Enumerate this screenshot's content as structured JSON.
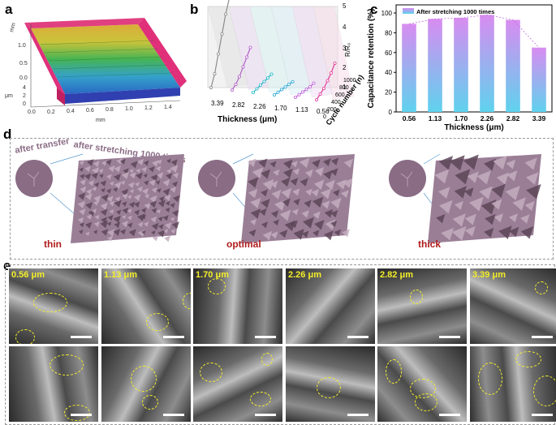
{
  "panels": {
    "a": {
      "letter": "a",
      "y_axis_unit": "mm",
      "x_axis_unit": "mm",
      "z_axis_unit": "μm",
      "x_ticks": [
        "0.0",
        "0.2",
        "0.4",
        "0.6",
        "0.8",
        "1.0",
        "1.2",
        "1.4"
      ],
      "y_ticks": [
        "0.0",
        "0.5",
        "1.0"
      ],
      "z_ticks": [
        "4",
        "2",
        "0"
      ]
    },
    "b": {
      "letter": "b",
      "xlabel": "Thickness (μm)",
      "thickness_ticks": [
        "3.39",
        "2.82",
        "2.26",
        "1.70",
        "1.13",
        "0.56"
      ],
      "cycle_label": "Cycle number (n)",
      "cycle_ticks": [
        "0",
        "200",
        "400",
        "600",
        "800",
        "1000"
      ],
      "r_label": "R/R₀",
      "r_ticks": [
        "1",
        "2",
        "3",
        "4",
        "5"
      ]
    },
    "c": {
      "letter": "c",
      "ylabel": "Capacitance retention (%)",
      "xlabel": "Thickness (μm)",
      "y_ticks": [
        "0",
        "20",
        "40",
        "60",
        "80",
        "100"
      ],
      "legend": "After stretching 1000 times"
    },
    "d": {
      "letter": "d",
      "inset_label": "after transfer",
      "caption": "after stretching 1000 times",
      "states": [
        "thin",
        "optimal",
        "thick"
      ]
    },
    "e": {
      "letter": "e",
      "labels": [
        "0.56 μm",
        "1.13 μm",
        "1.70 μm",
        "2.26 μm",
        "2.82 μm",
        "3.39 μm"
      ]
    }
  },
  "chart_data": [
    {
      "type": "bar",
      "title": "",
      "categories": [
        "0.56",
        "1.13",
        "1.70",
        "2.26",
        "2.82",
        "3.39"
      ],
      "values": [
        89,
        94,
        95,
        98,
        93,
        65
      ],
      "xlabel": "Thickness (μm)",
      "ylabel": "Capacitance retention (%)",
      "ylim": [
        0,
        100
      ],
      "legend": "After stretching 1000 times",
      "legend_position": "top",
      "colors": {
        "bar_top": "#d08ef0",
        "bar_bottom": "#6fd0ee",
        "trend": "#c070d8"
      }
    },
    {
      "type": "line",
      "title": "",
      "xlabel": "Thickness (μm)",
      "ylabel": "R/R₀",
      "zlabel": "Cycle number (n)",
      "x": [
        0,
        200,
        400,
        600,
        800,
        1000
      ],
      "ylim": [
        1,
        5
      ],
      "series": [
        {
          "name": "3.39",
          "values": [
            1.0,
            1.6,
            2.5,
            3.4,
            4.3,
            5.0
          ],
          "color": "#8c8c8c"
        },
        {
          "name": "2.82",
          "values": [
            1.0,
            1.2,
            1.5,
            1.9,
            2.3,
            2.7
          ],
          "color": "#b060c8"
        },
        {
          "name": "2.26",
          "values": [
            1.0,
            1.1,
            1.2,
            1.3,
            1.4,
            1.5
          ],
          "color": "#20b8c8"
        },
        {
          "name": "1.70",
          "values": [
            1.0,
            1.05,
            1.1,
            1.15,
            1.2,
            1.25
          ],
          "color": "#2aa8d8"
        },
        {
          "name": "1.13",
          "values": [
            1.0,
            1.05,
            1.1,
            1.15,
            1.2,
            1.3
          ],
          "color": "#c060d8"
        },
        {
          "name": "0.56",
          "values": [
            1.0,
            1.2,
            1.4,
            1.7,
            2.0,
            2.4
          ],
          "color": "#e0409a"
        }
      ]
    }
  ],
  "colors": {
    "dashed_border": "#999999",
    "membrane": "#8a6c85",
    "label_red": "#b01c1c",
    "sem_label": "#f3ee2a"
  }
}
